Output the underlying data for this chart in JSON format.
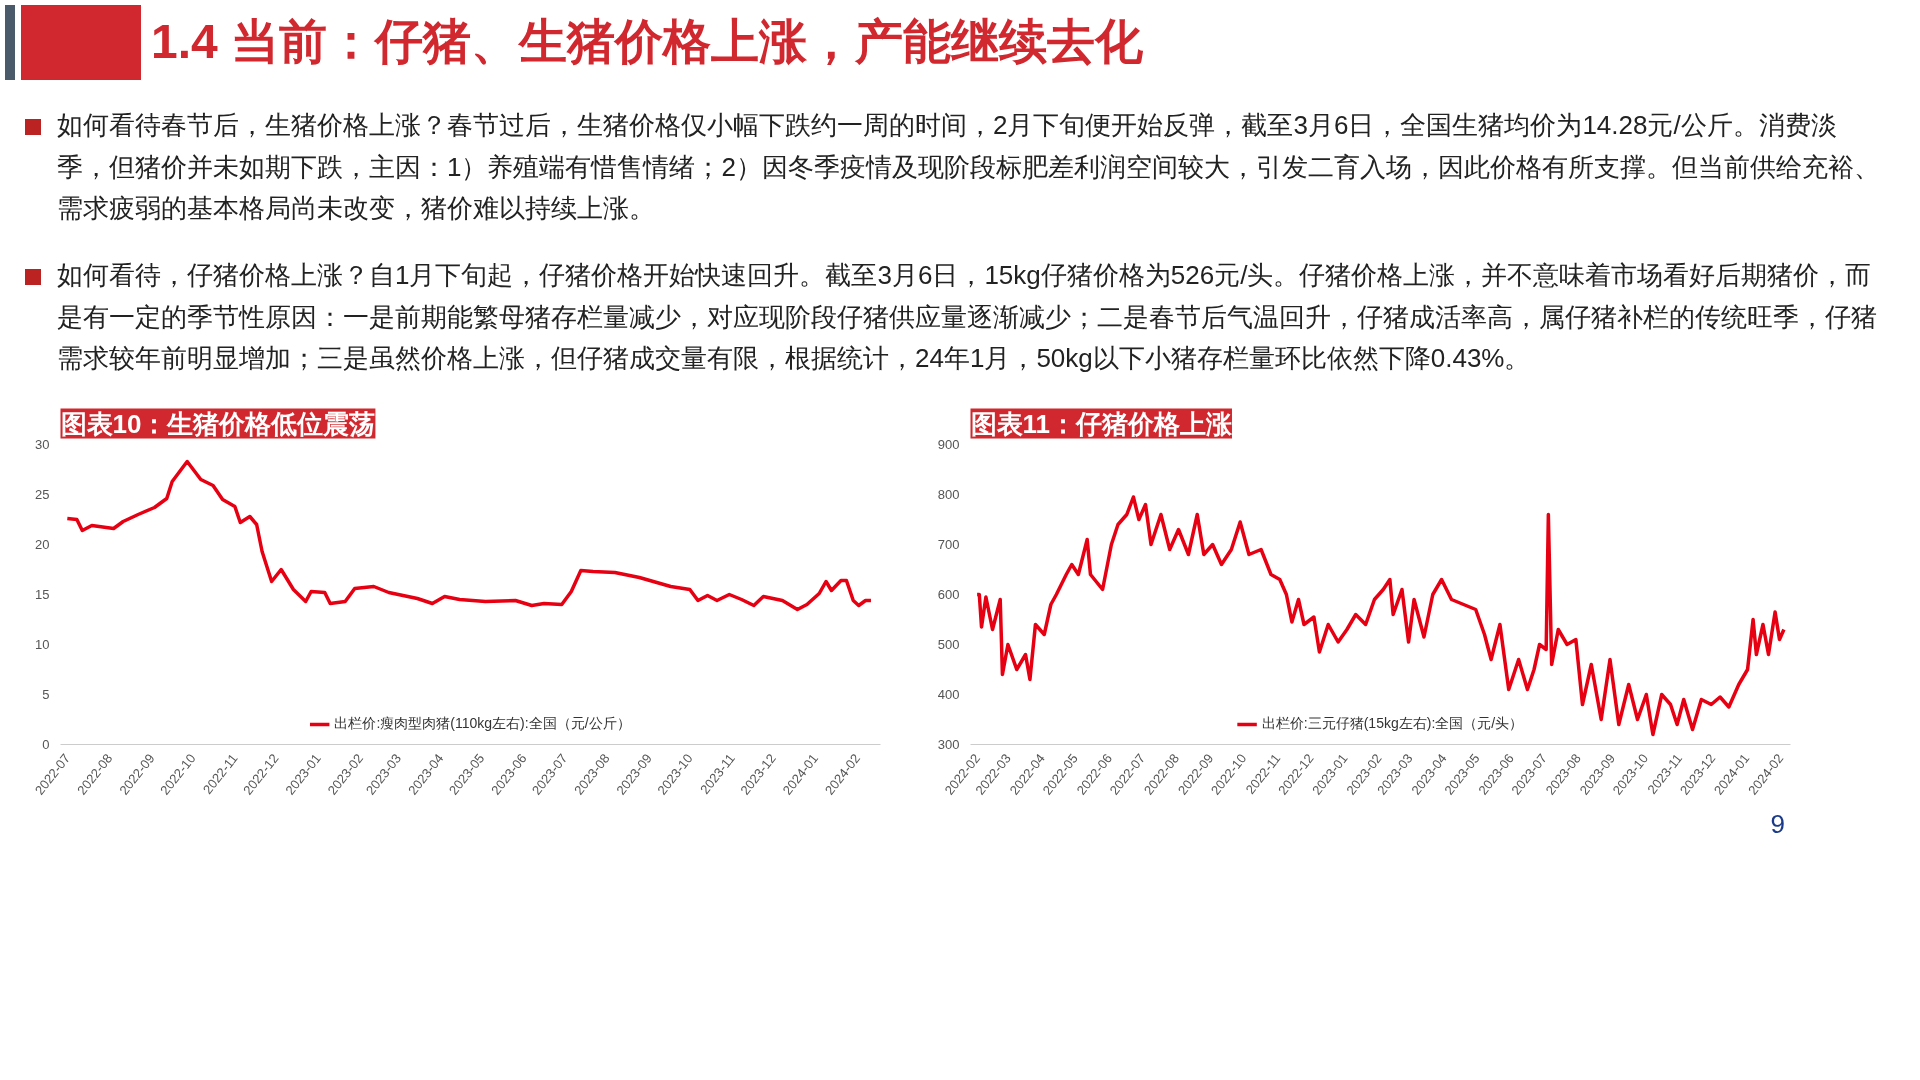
{
  "chart_data": [
    {
      "type": "line",
      "title": "图表10：生猪价格低位震荡",
      "annotations": [
        "1.4 当前：仔猪、生猪价格上涨，产能继续去化",
        "如何看待春节后，生猪价格上涨？春节过后，生猪价格仅小幅下跌约一周的时间，2月下旬便开始反弹，截至3月6日，全国生猪均价为14.28元/公斤。消费淡季，但猪价并未如期下跌，主因：1）养殖端有惜售情绪；2）因冬季疫情及现阶段标肥差利润空间较大，引发二育入场，因此价格有所支撑。但当前供给充裕、需求疲弱的基本格局尚未改变，猪价难以持续上涨。",
        "如何看待，仔猪价格上涨？自1月下旬起，仔猪价格开始快速回升。截至3月6日，15kg仔猪价格为526元/头。仔猪价格上涨，并不意味着市场看好后期猪价，而是有一定的季节性原因：一是前期能繁母猪存栏量减少，对应现阶段仔猪供应量逐渐减少；二是春节后气温回升，仔猪成活率高，属仔猪补栏的传统旺季，仔猪需求较年前明显增加；三是虽然价格上涨，但仔猪成交量有限，根据统计，24年1月，50kg以下小猪存栏量环比依然下降0.43%。",
        "9"
      ],
      "x": [
        "2022-07-01",
        "2022-07-08",
        "2022-07-12",
        "2022-07-19",
        "2022-08-04",
        "2022-08-11",
        "2022-08-22",
        "2022-09-03",
        "2022-09-12",
        "2022-09-16",
        "2022-09-27",
        "2022-10-07",
        "2022-10-16",
        "2022-10-23",
        "2022-11-01",
        "2022-11-05",
        "2022-11-12",
        "2022-11-17",
        "2022-11-21",
        "2022-11-28",
        "2022-12-05",
        "2022-12-14",
        "2022-12-23",
        "2022-12-27",
        "2023-01-06",
        "2023-01-10",
        "2023-01-21",
        "2023-01-28",
        "2023-02-11",
        "2023-02-22",
        "2023-03-15",
        "2023-03-26",
        "2023-04-04",
        "2023-04-15",
        "2023-05-04",
        "2023-05-26",
        "2023-06-07",
        "2023-06-16",
        "2023-06-29",
        "2023-07-06",
        "2023-07-13",
        "2023-07-22",
        "2023-08-07",
        "2023-08-25",
        "2023-09-17",
        "2023-10-01",
        "2023-10-07",
        "2023-10-14",
        "2023-10-21",
        "2023-10-30",
        "2023-11-08",
        "2023-11-17",
        "2023-11-24",
        "2023-12-08",
        "2023-12-19",
        "2023-12-26",
        "2024-01-04",
        "2024-01-09",
        "2024-01-13",
        "2024-01-20",
        "2024-01-24",
        "2024-01-29",
        "2024-02-02",
        "2024-02-07",
        "2024-02-11"
      ],
      "series": [
        {
          "name": "出栏价:瘦肉型肉猪(110kg左右):全国（元/公斤）",
          "color": "#e60012",
          "values": [
            22.6,
            22.5,
            21.4,
            21.9,
            21.6,
            22.3,
            23.0,
            23.7,
            24.6,
            26.3,
            28.3,
            26.5,
            25.9,
            24.5,
            23.8,
            22.2,
            22.8,
            22.0,
            19.3,
            16.3,
            17.5,
            15.5,
            14.3,
            15.3,
            15.2,
            14.1,
            14.3,
            15.6,
            15.8,
            15.2,
            14.6,
            14.1,
            14.8,
            14.5,
            14.3,
            14.4,
            13.9,
            14.1,
            14.0,
            15.3,
            17.4,
            17.3,
            17.2,
            16.7,
            15.8,
            15.5,
            14.4,
            14.9,
            14.4,
            15.0,
            14.5,
            13.9,
            14.8,
            14.4,
            13.5,
            14.0,
            15.1,
            16.3,
            15.4,
            16.4,
            16.4,
            14.4,
            13.9,
            14.4,
            14.4
          ]
        }
      ],
      "xlim": [
        "2022-06-26",
        "2024-02-18"
      ],
      "ylim": [
        0,
        30
      ],
      "yticks": [
        0,
        5,
        10,
        15,
        20,
        25,
        30
      ],
      "xticks": [
        "2022-07",
        "2022-08",
        "2022-09",
        "2022-10",
        "2022-11",
        "2022-12",
        "2023-01",
        "2023-02",
        "2023-03",
        "2023-04",
        "2023-05",
        "2023-06",
        "2023-07",
        "2023-08",
        "2023-09",
        "2023-10",
        "2023-11",
        "2023-12",
        "2024-01",
        "2024-02"
      ],
      "legend": "bottom",
      "grid": false,
      "marker": "none",
      "line_style": "solid"
    },
    {
      "type": "line",
      "title": "图表11：仔猪价格上涨",
      "x": [
        "2022-02-01",
        "2022-02-03",
        "2022-02-05",
        "2022-02-09",
        "2022-02-15",
        "2022-02-22",
        "2022-02-24",
        "2022-03-01",
        "2022-03-09",
        "2022-03-17",
        "2022-03-21",
        "2022-03-26",
        "2022-04-03",
        "2022-04-09",
        "2022-04-14",
        "2022-04-23",
        "2022-04-28",
        "2022-05-04",
        "2022-05-12",
        "2022-05-15",
        "2022-05-26",
        "2022-06-03",
        "2022-06-09",
        "2022-06-17",
        "2022-06-23",
        "2022-06-28",
        "2022-07-04",
        "2022-07-09",
        "2022-07-18",
        "2022-07-26",
        "2022-08-03",
        "2022-08-12",
        "2022-08-20",
        "2022-08-26",
        "2022-09-03",
        "2022-09-11",
        "2022-09-20",
        "2022-09-28",
        "2022-10-06",
        "2022-10-17",
        "2022-10-26",
        "2022-11-03",
        "2022-11-09",
        "2022-11-14",
        "2022-11-20",
        "2022-11-25",
        "2022-12-04",
        "2022-12-09",
        "2022-12-17",
        "2022-12-26",
        "2023-01-03",
        "2023-01-11",
        "2023-01-20",
        "2023-01-28",
        "2023-02-05",
        "2023-02-11",
        "2023-02-14",
        "2023-02-22",
        "2023-02-28",
        "2023-03-05",
        "2023-03-14",
        "2023-03-22",
        "2023-03-30",
        "2023-04-08",
        "2023-04-19",
        "2023-04-30",
        "2023-05-08",
        "2023-05-14",
        "2023-05-22",
        "2023-05-30",
        "2023-06-08",
        "2023-06-16",
        "2023-06-22",
        "2023-06-27",
        "2023-07-03",
        "2023-07-05",
        "2023-07-08",
        "2023-07-14",
        "2023-07-22",
        "2023-07-30",
        "2023-08-05",
        "2023-08-13",
        "2023-08-22",
        "2023-08-30",
        "2023-09-07",
        "2023-09-16",
        "2023-09-24",
        "2023-10-02",
        "2023-10-08",
        "2023-10-16",
        "2023-10-24",
        "2023-10-30",
        "2023-11-05",
        "2023-11-13",
        "2023-11-21",
        "2023-11-30",
        "2023-12-08",
        "2023-12-16",
        "2023-12-25",
        "2024-01-02",
        "2024-01-07",
        "2024-01-10",
        "2024-01-16",
        "2024-01-21",
        "2024-01-27",
        "2024-01-31",
        "2024-02-04"
      ],
      "series": [
        {
          "name": "出栏价:三元仔猪(15kg左右):全国（元/头）",
          "color": "#e60012",
          "values": [
            600,
            600,
            535,
            595,
            530,
            590,
            440,
            500,
            450,
            480,
            430,
            540,
            520,
            580,
            600,
            640,
            660,
            640,
            710,
            640,
            610,
            700,
            740,
            760,
            795,
            750,
            780,
            700,
            760,
            690,
            730,
            680,
            760,
            680,
            700,
            660,
            690,
            745,
            680,
            690,
            640,
            630,
            600,
            545,
            590,
            540,
            555,
            485,
            540,
            505,
            530,
            560,
            540,
            590,
            610,
            630,
            560,
            610,
            505,
            590,
            515,
            600,
            630,
            590,
            580,
            570,
            520,
            470,
            540,
            410,
            470,
            410,
            450,
            500,
            490,
            760,
            460,
            530,
            500,
            510,
            380,
            460,
            350,
            470,
            340,
            420,
            350,
            400,
            320,
            400,
            380,
            340,
            390,
            330,
            390,
            380,
            395,
            375,
            420,
            450,
            550,
            480,
            540,
            480,
            565,
            510,
            530
          ]
        }
      ],
      "xlim": [
        "2022-01-26",
        "2024-02-10"
      ],
      "ylim": [
        300,
        900
      ],
      "yticks": [
        300,
        400,
        500,
        600,
        700,
        800,
        900
      ],
      "xticks": [
        "2022-02",
        "2022-03",
        "2022-04",
        "2022-05",
        "2022-06",
        "2022-07",
        "2022-08",
        "2022-09",
        "2022-10",
        "2022-11",
        "2022-12",
        "2023-01",
        "2023-02",
        "2023-03",
        "2023-04",
        "2023-05",
        "2023-06",
        "2023-07",
        "2023-08",
        "2023-09",
        "2023-10",
        "2023-11",
        "2023-12",
        "2024-01",
        "2024-02"
      ],
      "legend": "bottom",
      "grid": false,
      "marker": "none",
      "line_style": "solid"
    }
  ]
}
